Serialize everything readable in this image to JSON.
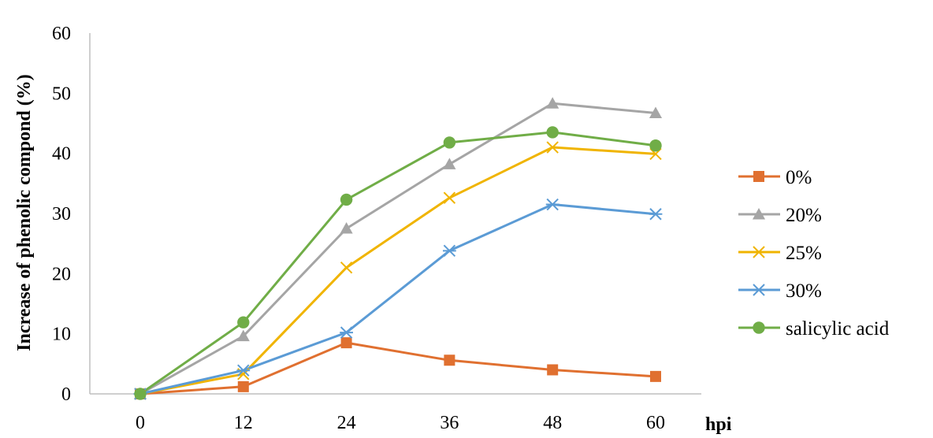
{
  "chart_data": {
    "type": "line",
    "title": "",
    "xlabel": "hpi",
    "ylabel": "Increase of phenolic compond (%)",
    "x": [
      "0",
      "12",
      "24",
      "36",
      "48",
      "60"
    ],
    "ylim": [
      0,
      60
    ],
    "yticks": [
      0,
      10,
      20,
      30,
      40,
      50,
      60
    ],
    "grid": false,
    "legend": "right",
    "series": [
      {
        "name": "0%",
        "color": "#e07030",
        "marker": "square",
        "values": [
          0,
          1.2,
          8.5,
          5.6,
          4.0,
          2.9
        ]
      },
      {
        "name": "20%",
        "color": "#a5a5a5",
        "marker": "triangle",
        "values": [
          0,
          9.6,
          27.5,
          38.2,
          48.3,
          46.7
        ]
      },
      {
        "name": "25%",
        "color": "#f0b400",
        "marker": "x",
        "values": [
          0,
          3.3,
          21.0,
          32.6,
          41.0,
          39.9
        ]
      },
      {
        "name": "30%",
        "color": "#5b9bd5",
        "marker": "asterisk",
        "values": [
          0,
          3.9,
          10.2,
          23.8,
          31.5,
          29.9
        ]
      },
      {
        "name": "salicylic acid",
        "color": "#70ad47",
        "marker": "circle",
        "values": [
          0,
          11.9,
          32.3,
          41.8,
          43.5,
          41.3
        ]
      }
    ]
  }
}
